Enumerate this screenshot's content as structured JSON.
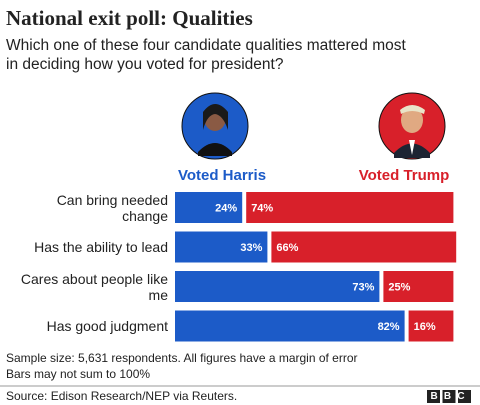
{
  "chart_data": {
    "type": "bar",
    "stacked": true,
    "orientation": "horizontal",
    "title": "National exit poll: Qualities",
    "subtitle": "Which one of these four candidate qualities mattered most in deciding how you voted for president?",
    "categories": [
      "Can bring needed change",
      "Has the ability to lead",
      "Cares about people like me",
      "Has good judgment"
    ],
    "series": [
      {
        "name": "Voted Harris",
        "color": "#1c5bc8",
        "values": [
          24,
          33,
          73,
          82
        ],
        "value_labels": [
          "24%",
          "33%",
          "73%",
          "82%"
        ]
      },
      {
        "name": "Voted Trump",
        "color": "#d8202a",
        "values": [
          74,
          66,
          25,
          16
        ],
        "value_labels": [
          "74%",
          "66%",
          "25%",
          "16%"
        ]
      }
    ],
    "xlim": [
      0,
      100
    ],
    "notes": [
      "Sample size: 5,631 respondents. All figures have a margin of error",
      "Bars may not sum to 100%"
    ],
    "source": "Source: Edison Research/NEP via Reuters.",
    "logo": "BBC"
  }
}
